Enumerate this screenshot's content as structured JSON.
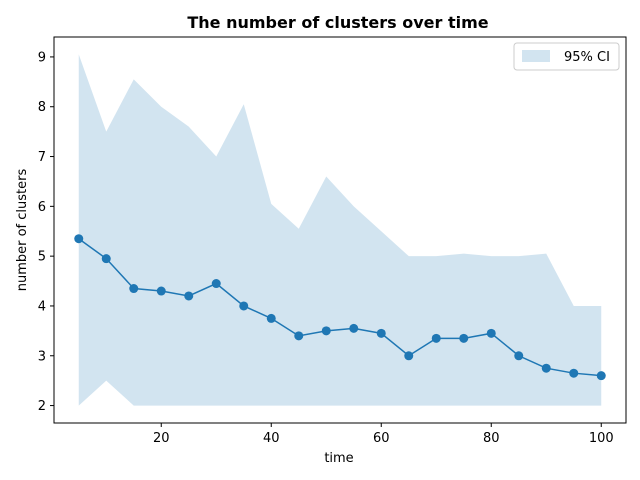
{
  "chart_data": {
    "type": "line",
    "title": "The number of clusters over time",
    "xlabel": "time",
    "ylabel": "number of clusters",
    "xlim": [
      0.5,
      104.5
    ],
    "ylim": [
      1.65,
      9.4
    ],
    "xticks": [
      20,
      40,
      60,
      80,
      100
    ],
    "yticks": [
      2,
      3,
      4,
      5,
      6,
      7,
      8,
      9
    ],
    "grid": false,
    "legend": {
      "placement": "top-right",
      "entries": [
        "95% CI"
      ]
    },
    "colors": {
      "line": "#1f77b4",
      "band": "#1f77b4"
    },
    "x": [
      5,
      10,
      15,
      20,
      25,
      30,
      35,
      40,
      45,
      50,
      55,
      60,
      65,
      70,
      75,
      80,
      85,
      90,
      95,
      100
    ],
    "series": [
      {
        "values": [
          5.35,
          4.95,
          4.35,
          4.3,
          4.2,
          4.45,
          4.0,
          3.75,
          3.4,
          3.5,
          3.55,
          3.45,
          3.0,
          3.35,
          3.35,
          3.45,
          3.0,
          2.75,
          2.65,
          2.6
        ]
      }
    ],
    "ci": {
      "name": "95% CI",
      "lower": [
        2.0,
        2.5,
        2.0,
        2.0,
        2.0,
        2.0,
        2.0,
        2.0,
        2.0,
        2.0,
        2.0,
        2.0,
        2.0,
        2.0,
        2.0,
        2.0,
        2.0,
        2.0,
        2.0,
        2.0
      ],
      "upper": [
        9.05,
        7.5,
        8.55,
        8.0,
        7.6,
        7.0,
        8.05,
        6.05,
        5.55,
        6.6,
        6.0,
        5.5,
        5.0,
        5.0,
        5.05,
        5.0,
        5.0,
        5.05,
        4.0,
        4.0
      ]
    }
  }
}
